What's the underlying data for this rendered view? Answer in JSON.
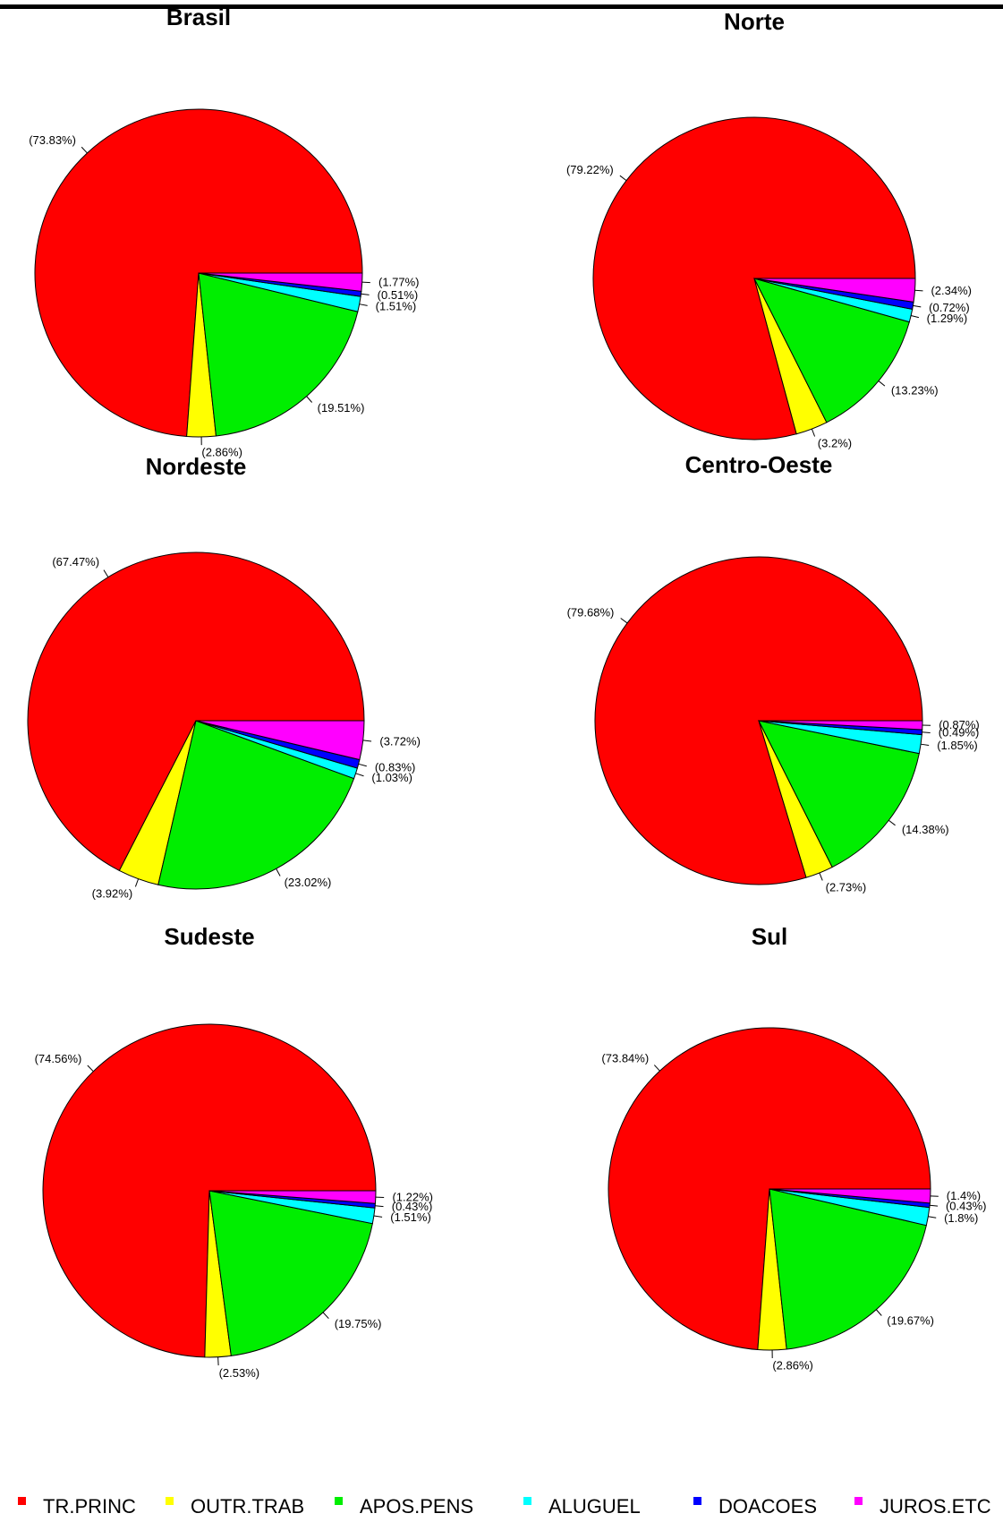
{
  "chart_data": [
    {
      "type": "pie",
      "title": "Brasil",
      "values": [
        73.83,
        2.86,
        19.51,
        1.51,
        0.51,
        1.77
      ],
      "value_labels": [
        "(73.83%)",
        "(2.86%)",
        "(19.51%)",
        "(1.51%)",
        "(0.51%)",
        "(1.77%)"
      ]
    },
    {
      "type": "pie",
      "title": "Norte",
      "values": [
        79.22,
        3.2,
        13.23,
        1.29,
        0.72,
        2.34
      ],
      "value_labels": [
        "(79.22%)",
        "(3.2%)",
        "(13.23%)",
        "(1.29%)",
        "(0.72%)",
        "(2.34%)"
      ]
    },
    {
      "type": "pie",
      "title": "Nordeste",
      "values": [
        67.47,
        3.92,
        23.02,
        1.03,
        0.83,
        3.72
      ],
      "value_labels": [
        "(67.47%)",
        "(3.92%)",
        "(23.02%)",
        "(1.03%)",
        "(0.83%)",
        "(3.72%)"
      ]
    },
    {
      "type": "pie",
      "title": "Centro-Oeste",
      "values": [
        79.68,
        2.73,
        14.38,
        1.85,
        0.49,
        0.87
      ],
      "value_labels": [
        "(79.68%)",
        "(2.73%)",
        "(14.38%)",
        "(1.85%)",
        "(0.49%)",
        "(0.87%)"
      ]
    },
    {
      "type": "pie",
      "title": "Sudeste",
      "values": [
        74.56,
        2.53,
        19.75,
        1.51,
        0.43,
        1.22
      ],
      "value_labels": [
        "(74.56%)",
        "(2.53%)",
        "(19.75%)",
        "(1.51%)",
        "(0.43%)",
        "(1.22%)"
      ]
    },
    {
      "type": "pie",
      "title": "Sul",
      "values": [
        73.84,
        2.86,
        19.67,
        1.8,
        0.43,
        1.4
      ],
      "value_labels": [
        "(73.84%)",
        "(2.86%)",
        "(19.67%)",
        "(1.8%)",
        "(0.43%)",
        "(1.4%)"
      ]
    }
  ],
  "legend": {
    "categories": [
      "TR.PRINC",
      "OUTR.TRAB",
      "APOS.PENS",
      "ALUGUEL",
      "DOACOES",
      "JUROS.ETC"
    ],
    "colors": [
      "#ff0000",
      "#ffff00",
      "#00ee00",
      "#00ffff",
      "#0000ff",
      "#ff00ff"
    ]
  }
}
